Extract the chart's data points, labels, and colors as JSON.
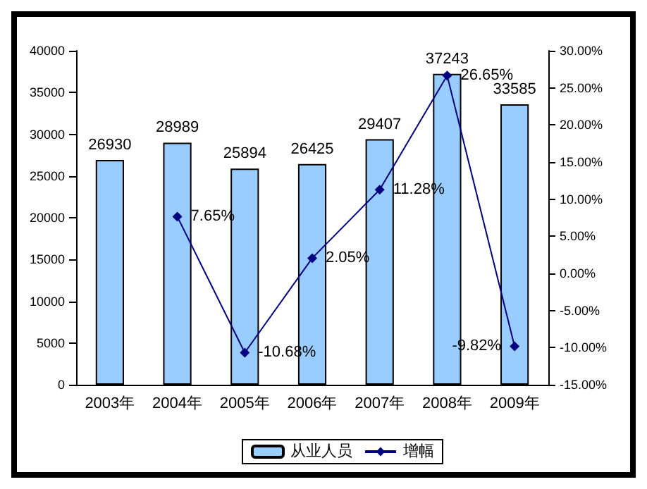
{
  "chart_data": {
    "type": "bar",
    "categories": [
      "2003年",
      "2004年",
      "2005年",
      "2006年",
      "2007年",
      "2008年",
      "2009年"
    ],
    "series": [
      {
        "name": "从业人员",
        "color": "#99ccff",
        "values": [
          26930,
          28989,
          25894,
          26425,
          29407,
          37243,
          33585
        ]
      },
      {
        "name": "增幅",
        "type": "line",
        "axis": "y2",
        "color": "#000080",
        "values": [
          null,
          7.65,
          -10.68,
          2.05,
          11.28,
          26.65,
          -9.82
        ],
        "value_labels": [
          null,
          "7.65%",
          "-10.68%",
          "2.05%",
          "11.28%",
          "26.65%",
          "-9.82%"
        ]
      }
    ],
    "data_labels": true,
    "ylim": [
      0,
      40000
    ],
    "yticks": [
      0,
      5000,
      10000,
      15000,
      20000,
      25000,
      30000,
      35000,
      40000
    ],
    "y2lim": [
      -15,
      30
    ],
    "y2ticks": [
      {
        "value": -15,
        "label": "-15.00%"
      },
      {
        "value": -10,
        "label": "-10.00%"
      },
      {
        "value": -5,
        "label": "-5.00%"
      },
      {
        "value": 0,
        "label": "0.00%"
      },
      {
        "value": 5,
        "label": "5.00%"
      },
      {
        "value": 10,
        "label": "10.00%"
      },
      {
        "value": 15,
        "label": "15.00%"
      },
      {
        "value": 20,
        "label": "20.00%"
      },
      {
        "value": 25,
        "label": "25.00%"
      },
      {
        "value": 30,
        "label": "30.00%"
      }
    ],
    "grid": false,
    "legend": "bottom",
    "marker": "diamond",
    "line_style": "solid"
  }
}
